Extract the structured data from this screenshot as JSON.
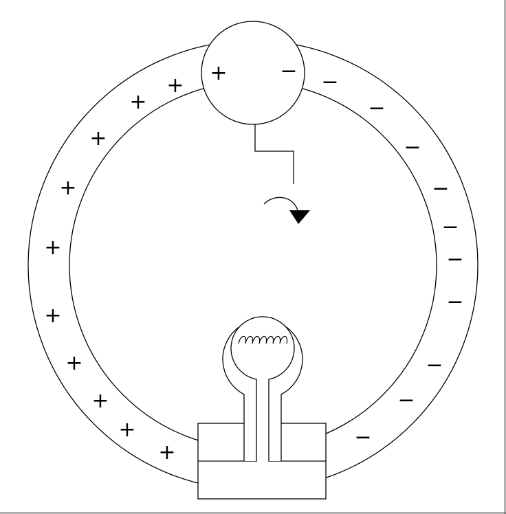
{
  "diagram": {
    "plus_sign": "+",
    "minus_sign": "−",
    "line_color": "#000000",
    "background": "#ffffff",
    "components": [
      "outer-ring",
      "inner-ring",
      "top-sphere",
      "wire",
      "rotation-arrow",
      "bulb",
      "filament",
      "base-block"
    ]
  }
}
